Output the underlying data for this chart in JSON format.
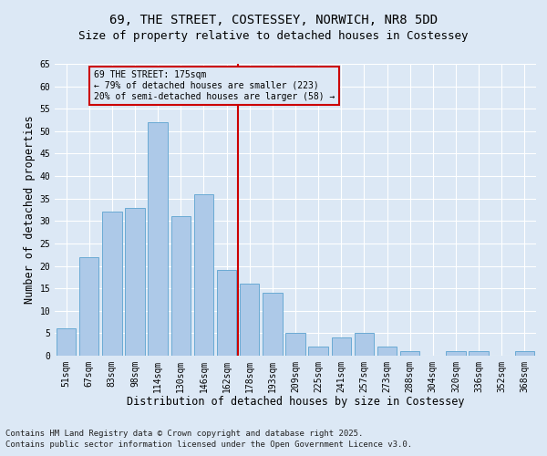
{
  "title1": "69, THE STREET, COSTESSEY, NORWICH, NR8 5DD",
  "title2": "Size of property relative to detached houses in Costessey",
  "xlabel": "Distribution of detached houses by size in Costessey",
  "ylabel": "Number of detached properties",
  "categories": [
    "51sqm",
    "67sqm",
    "83sqm",
    "98sqm",
    "114sqm",
    "130sqm",
    "146sqm",
    "162sqm",
    "178sqm",
    "193sqm",
    "209sqm",
    "225sqm",
    "241sqm",
    "257sqm",
    "273sqm",
    "288sqm",
    "304sqm",
    "320sqm",
    "336sqm",
    "352sqm",
    "368sqm"
  ],
  "values": [
    6,
    22,
    32,
    33,
    52,
    31,
    36,
    19,
    16,
    14,
    5,
    2,
    4,
    5,
    2,
    1,
    0,
    1,
    1,
    0,
    1
  ],
  "bar_color": "#adc9e8",
  "bar_edgecolor": "#6aaad4",
  "vline_color": "#cc0000",
  "annotation_text": "69 THE STREET: 175sqm\n← 79% of detached houses are smaller (223)\n20% of semi-detached houses are larger (58) →",
  "annotation_box_edgecolor": "#cc0000",
  "ylim": [
    0,
    65
  ],
  "yticks": [
    0,
    5,
    10,
    15,
    20,
    25,
    30,
    35,
    40,
    45,
    50,
    55,
    60,
    65
  ],
  "footer1": "Contains HM Land Registry data © Crown copyright and database right 2025.",
  "footer2": "Contains public sector information licensed under the Open Government Licence v3.0.",
  "bg_color": "#dce8f5",
  "grid_color": "#ffffff",
  "title1_fontsize": 10,
  "title2_fontsize": 9,
  "tick_fontsize": 7,
  "label_fontsize": 8.5,
  "footer_fontsize": 6.5
}
